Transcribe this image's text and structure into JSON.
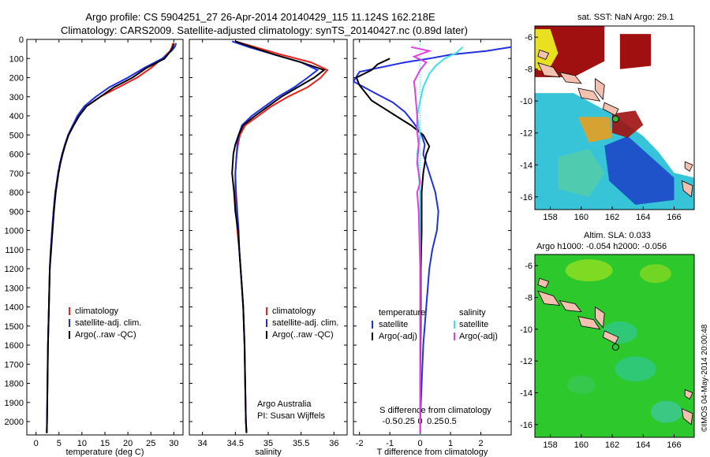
{
  "title": {
    "line1": "Argo profile: CS 5904251_27 26-Apr-2014 20140429_115 11.124S 162.218E",
    "line2": "Climatology: CARS2009. Satellite-adjusted climatology: synTS_20140427.nc (0.89d later)"
  },
  "colors": {
    "climatology": "#e8221f",
    "satellite": "#2030e0",
    "argo": "#000000",
    "salinity_satellite": "#40e0e8",
    "salinity_argo": "#e040e0",
    "land": "#f4c0b0",
    "map_bg": "#ffffff"
  },
  "depth_axis": {
    "ticks": [
      "0",
      "100",
      "200",
      "300",
      "400",
      "500",
      "600",
      "700",
      "800",
      "900",
      "1000",
      "1100",
      "1200",
      "1300",
      "1400",
      "1500",
      "1600",
      "1700",
      "1800",
      "1900",
      "2000"
    ],
    "min": 0,
    "max": 2070
  },
  "chart_data": [
    {
      "type": "line",
      "id": "temperature",
      "xlabel": "temperature (deg C)",
      "ylabel": "",
      "xlim": [
        -2,
        32
      ],
      "ylim": [
        0,
        2070
      ],
      "xticks": [
        "0",
        "5",
        "10",
        "15",
        "20",
        "25",
        "30"
      ],
      "xtick_values": [
        0,
        5,
        10,
        15,
        20,
        25,
        30
      ],
      "legend": {
        "position": "bottom-left",
        "entries": [
          "climatology",
          "satellite-adj. clim.",
          "Argo(..raw -QC)"
        ]
      },
      "series": [
        {
          "name": "climatology",
          "color_key": "climatology",
          "x": [
            29.8,
            29.6,
            29.2,
            27.5,
            25,
            22,
            18,
            14,
            11,
            9.2,
            8,
            7,
            6.3,
            5.7,
            5.2,
            4.8,
            4.5,
            4.2,
            4,
            3.8,
            3.5,
            3.2,
            3,
            2.8,
            2.6,
            2.5,
            2.4,
            2.35
          ],
          "y": [
            20,
            40,
            60,
            100,
            150,
            200,
            250,
            300,
            350,
            400,
            450,
            500,
            550,
            600,
            650,
            700,
            750,
            800,
            850,
            900,
            1000,
            1100,
            1200,
            1400,
            1600,
            1800,
            2000,
            2060
          ]
        },
        {
          "name": "satellite-adj. clim.",
          "color_key": "satellite",
          "x": [
            30.5,
            30.2,
            29.5,
            27.5,
            23.5,
            20,
            16,
            13,
            10.5,
            9,
            8,
            7,
            6.3,
            5.7,
            5.2,
            4.8,
            4.5,
            4.2,
            4,
            3.8,
            3.5,
            3.2,
            3,
            2.8,
            2.6,
            2.5,
            2.4,
            2.35
          ],
          "y": [
            20,
            40,
            60,
            100,
            150,
            200,
            250,
            300,
            350,
            400,
            450,
            500,
            550,
            600,
            650,
            700,
            750,
            800,
            850,
            900,
            1000,
            1100,
            1200,
            1400,
            1600,
            1800,
            2000,
            2060
          ]
        },
        {
          "name": "Argo(..raw -QC)",
          "color_key": "argo",
          "x": [
            30,
            29.8,
            29.3,
            28,
            24,
            21,
            17,
            14,
            11,
            9.4,
            8.2,
            7.1,
            6.4,
            5.8,
            5.3,
            4.9,
            4.6,
            4.3,
            4.1,
            3.9,
            3.6,
            3.3,
            3,
            2.8,
            2.6,
            2.5,
            2.4,
            2.35
          ],
          "y": [
            20,
            40,
            60,
            100,
            150,
            200,
            250,
            300,
            350,
            400,
            450,
            500,
            550,
            600,
            650,
            700,
            750,
            800,
            850,
            900,
            1000,
            1100,
            1200,
            1400,
            1600,
            1800,
            2000,
            2060
          ]
        }
      ]
    },
    {
      "type": "line",
      "id": "salinity",
      "xlabel": "salinity",
      "ylabel": "",
      "xlim": [
        33.8,
        36.2
      ],
      "ylim": [
        0,
        2070
      ],
      "xticks": [
        "34",
        "34.5",
        "35",
        "35.5",
        "36"
      ],
      "xtick_values": [
        34,
        34.5,
        35,
        35.5,
        36
      ],
      "legend": {
        "position": "bottom-left",
        "entries": [
          "climatology",
          "satellite-adj. clim.",
          "Argo(..raw -QC)"
        ]
      },
      "annotation": [
        "Argo Australia",
        "PI: Susan Wijffels"
      ],
      "series": [
        {
          "name": "climatology",
          "color_key": "climatology",
          "x": [
            34.5,
            34.8,
            35.2,
            35.65,
            35.9,
            35.8,
            35.6,
            35.3,
            35.05,
            34.85,
            34.65,
            34.57,
            34.54,
            34.52,
            34.5,
            34.5,
            34.51,
            34.53,
            34.56,
            34.58,
            34.6,
            34.62,
            34.64,
            34.65,
            34.66,
            34.67
          ],
          "y": [
            10,
            40,
            80,
            120,
            160,
            200,
            250,
            300,
            350,
            400,
            450,
            500,
            550,
            600,
            700,
            800,
            900,
            1000,
            1100,
            1200,
            1300,
            1400,
            1600,
            1800,
            2000,
            2060
          ]
        },
        {
          "name": "satellite-adj. clim.",
          "color_key": "satellite",
          "x": [
            34.45,
            34.7,
            35.1,
            35.5,
            35.75,
            35.6,
            35.4,
            35.15,
            34.95,
            34.75,
            34.6,
            34.55,
            34.53,
            34.52,
            34.5,
            34.51,
            34.53,
            34.55,
            34.56,
            34.58,
            34.6,
            34.62,
            34.64,
            34.65,
            34.66,
            34.67
          ],
          "y": [
            10,
            40,
            80,
            120,
            160,
            200,
            250,
            300,
            350,
            400,
            450,
            500,
            550,
            600,
            700,
            800,
            900,
            1000,
            1100,
            1200,
            1300,
            1400,
            1600,
            1800,
            2000,
            2060
          ]
        },
        {
          "name": "Argo(..raw -QC)",
          "color_key": "argo",
          "x": [
            34.5,
            34.75,
            35.1,
            35.5,
            35.85,
            35.7,
            35.45,
            35.2,
            35.0,
            34.8,
            34.62,
            34.55,
            34.5,
            34.47,
            34.45,
            34.48,
            34.5,
            34.54,
            34.56,
            34.58,
            34.6,
            34.62,
            34.64,
            34.65,
            34.66,
            34.67
          ],
          "y": [
            10,
            40,
            80,
            120,
            160,
            200,
            250,
            300,
            350,
            400,
            450,
            500,
            550,
            600,
            700,
            800,
            900,
            1000,
            1100,
            1200,
            1300,
            1400,
            1600,
            1800,
            2000,
            2060
          ]
        }
      ]
    },
    {
      "type": "line",
      "id": "differences",
      "xlabel": "T difference from climatology",
      "xlabel_top": "S difference from climatology",
      "ylabel": "",
      "xlim": [
        -2.2,
        3
      ],
      "ylim": [
        0,
        2070
      ],
      "xticks": [
        "-2",
        "-1",
        "0",
        "1",
        "2"
      ],
      "xtick_values": [
        -2,
        -1,
        0,
        1,
        2
      ],
      "xticks_s": [
        "-0.5",
        "-0.25",
        "0",
        "0.25",
        "0.5"
      ],
      "xtick_s_values": [
        -0.5,
        -0.25,
        0,
        0.25,
        0.5
      ],
      "s_scale": 4,
      "legend": {
        "position": "bottom",
        "temperature_title": "temperature",
        "salinity_title": "salinity",
        "temperature_entries": [
          "satellite",
          "Argo(-adj)"
        ],
        "salinity_entries": [
          "satellite",
          "Argo(-adj)"
        ]
      },
      "series": [
        {
          "name": "T satellite",
          "color_key": "satellite",
          "x": [
            3,
            2.2,
            1,
            0.3,
            -0.5,
            -2,
            -2.2,
            -1.5,
            -0.9,
            -0.5,
            -0.2,
            0.05,
            0.15,
            0.1,
            0.3,
            0.5,
            0.6,
            0.55,
            0.4,
            0.3,
            0.2,
            0.1,
            0.05,
            0,
            0
          ],
          "y": [
            40,
            60,
            80,
            100,
            120,
            170,
            220,
            280,
            330,
            380,
            440,
            500,
            550,
            600,
            700,
            800,
            900,
            1000,
            1100,
            1200,
            1400,
            1600,
            1800,
            2000,
            2060
          ]
        },
        {
          "name": "T Argo(-adj)",
          "color_key": "argo",
          "x": [
            -1,
            -1.4,
            -1.6,
            -2.1,
            -2.0,
            -1.8,
            -1.6,
            -1.2,
            -0.8,
            -0.3,
            0.1,
            0.3,
            0.2,
            0.15,
            0.1,
            0.05,
            0.05,
            0.05,
            0.02,
            0.02,
            0.0,
            0.0
          ],
          "y": [
            100,
            130,
            160,
            200,
            240,
            280,
            320,
            360,
            400,
            450,
            500,
            560,
            600,
            650,
            700,
            800,
            900,
            1000,
            1200,
            1500,
            1800,
            2060
          ]
        },
        {
          "name": "S satellite",
          "color_key": "salinity_satellite",
          "x": [
            1.4,
            1.2,
            0.8,
            0.5,
            0.3,
            0.1,
            0.0,
            -0.1,
            -0.05,
            0.0,
            -0.05,
            -0.1,
            -0.05,
            0.0,
            0.0,
            0.0,
            0.0,
            0.0
          ],
          "y": [
            40,
            70,
            100,
            140,
            180,
            250,
            320,
            400,
            450,
            500,
            550,
            600,
            700,
            800,
            1000,
            1400,
            1800,
            2060
          ]
        },
        {
          "name": "S Argo(-adj)",
          "color_key": "salinity_argo",
          "x": [
            -0.3,
            0.3,
            -0.2,
            0.2,
            0.0,
            -0.2,
            -0.15,
            -0.1,
            -0.1,
            -0.05,
            -0.1,
            0.0,
            -0.1,
            -0.05,
            0.0,
            0.0,
            0.0
          ],
          "y": [
            40,
            60,
            90,
            120,
            160,
            220,
            300,
            400,
            480,
            550,
            650,
            750,
            800,
            900,
            1200,
            1600,
            2060
          ]
        }
      ]
    }
  ],
  "maps": {
    "sst": {
      "title": "sat. SST: NaN Argo: 29.1",
      "xticks": [
        "158",
        "160",
        "162",
        "164",
        "166"
      ],
      "xtick_values": [
        158,
        160,
        162,
        164,
        166
      ],
      "yticks": [
        "-6",
        "-8",
        "-10",
        "-12",
        "-14",
        "-16"
      ],
      "ytick_values": [
        -6,
        -8,
        -10,
        -12,
        -14,
        -16
      ],
      "lon_range": [
        157,
        167.3
      ],
      "lat_range": [
        -16.8,
        -5.3
      ],
      "argo_marker": {
        "lon": 162.218,
        "lat": -11.124
      }
    },
    "sla": {
      "title1": "Altim. SLA: 0.033",
      "title2": "Argo h1000: -0.054 h2000: -0.056",
      "xticks": [
        "158",
        "160",
        "162",
        "164",
        "166"
      ],
      "xtick_values": [
        158,
        160,
        162,
        164,
        166
      ],
      "yticks": [
        "-6",
        "-8",
        "-10",
        "-12",
        "-14",
        "-16"
      ],
      "ytick_values": [
        -6,
        -8,
        -10,
        -12,
        -14,
        -16
      ],
      "lon_range": [
        157,
        167.3
      ],
      "lat_range": [
        -16.8,
        -5.3
      ],
      "argo_marker": {
        "lon": 162.218,
        "lat": -11.124
      }
    },
    "credit": "©IMOS 04-May-2014 20:00:48"
  }
}
